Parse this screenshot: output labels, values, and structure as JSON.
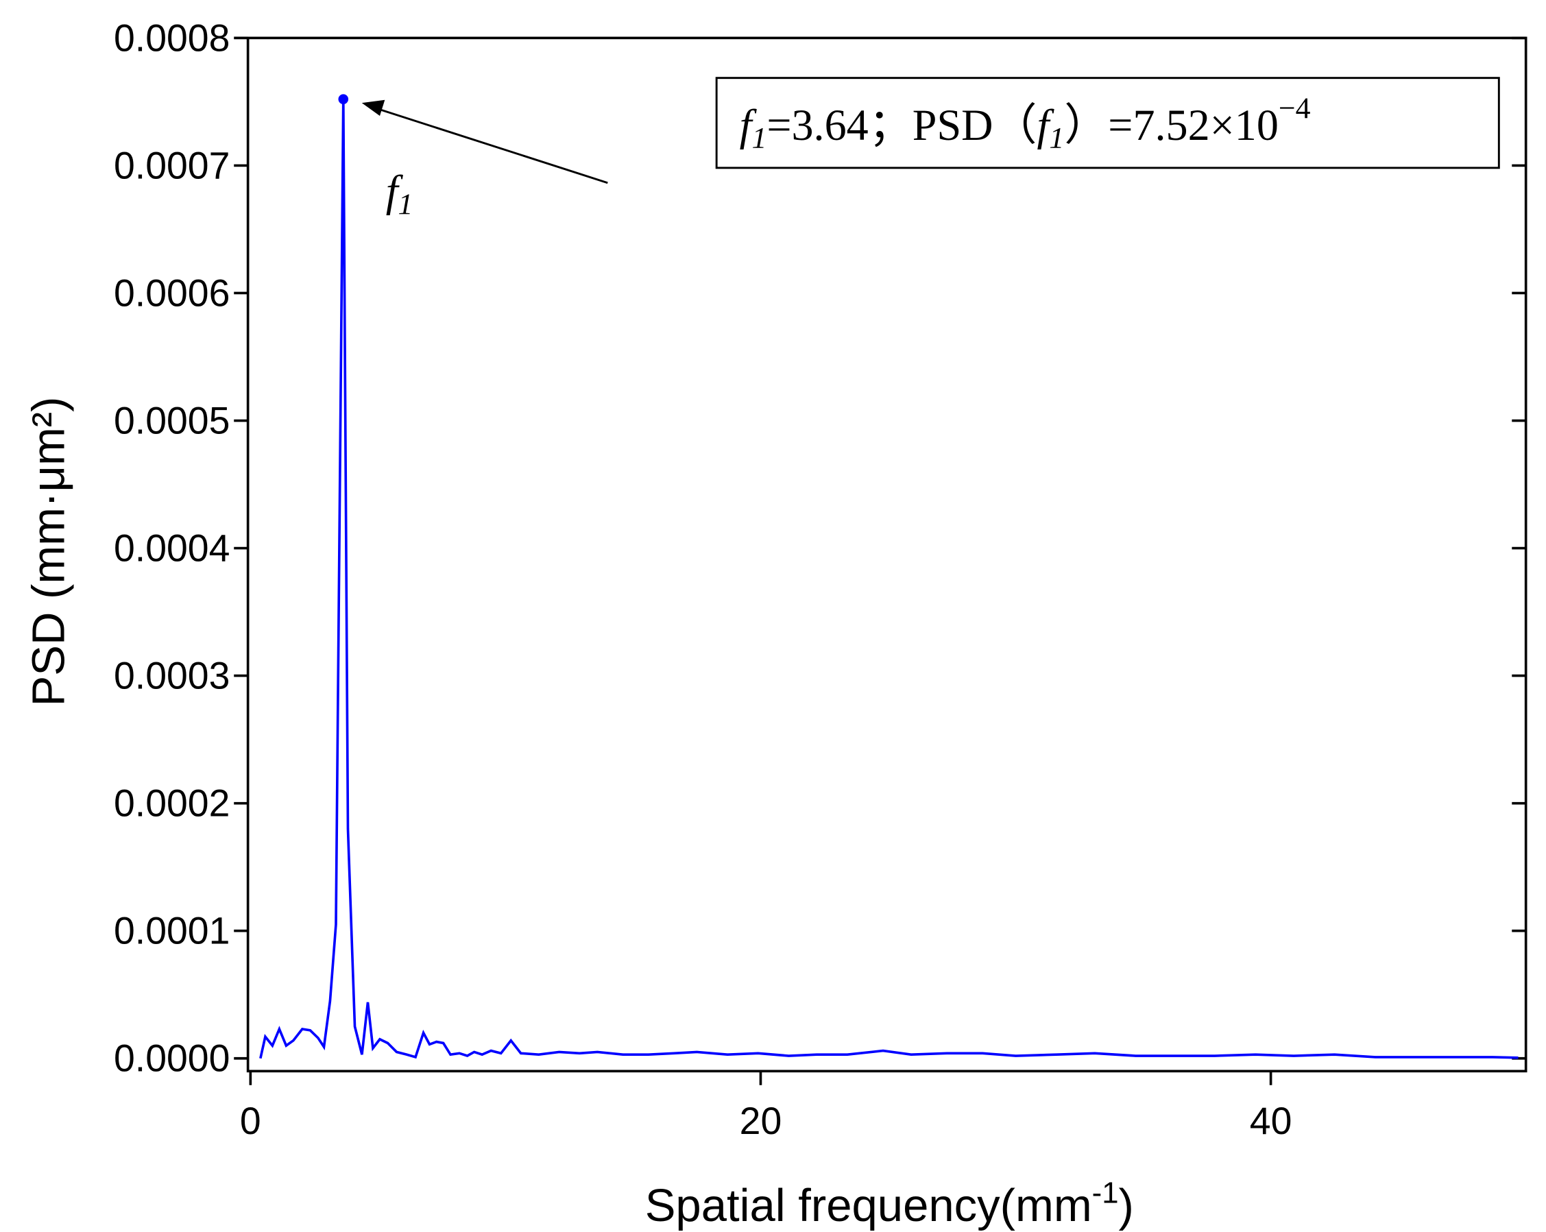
{
  "chart_data": {
    "type": "line",
    "x_label": [
      "Spatial frequency(mm",
      "-1",
      ")"
    ],
    "y_label": "PSD (mm·μm²)",
    "xlim": [
      -0.1,
      50.0
    ],
    "ylim": [
      -1e-05,
      0.0008
    ],
    "xticks": [
      0,
      20,
      40
    ],
    "yticks": [
      {
        "value": 0,
        "label": "0.0000"
      },
      0.0001,
      0.0002,
      0.0003,
      0.0004,
      0.0005,
      0.0006,
      0.0007,
      0.0008
    ],
    "series": [
      {
        "color": "#0000ff",
        "x": [
          0.39,
          0.58,
          0.86,
          1.13,
          1.4,
          1.68,
          2.03,
          2.34,
          2.65,
          2.88,
          3.12,
          3.35,
          3.64,
          3.82,
          4.09,
          4.37,
          4.6,
          4.8,
          5.07,
          5.38,
          5.73,
          6.12,
          6.47,
          6.78,
          7.02,
          7.29,
          7.56,
          7.84,
          8.19,
          8.5,
          8.77,
          9.08,
          9.43,
          9.82,
          10.21,
          10.6,
          11.3,
          12.1,
          12.9,
          13.6,
          14.6,
          15.6,
          16.6,
          17.5,
          18.7,
          19.9,
          21.1,
          22.2,
          23.4,
          24.8,
          25.9,
          27.3,
          28.7,
          30.0,
          31.6,
          33.1,
          34.7,
          36.3,
          37.8,
          39.4,
          40.9,
          42.5,
          44.1,
          45.6,
          47.2,
          48.7,
          49.7
        ],
        "values": [
          0,
          1.7e-05,
          1e-05,
          2.3e-05,
          1e-05,
          1.4e-05,
          2.3e-05,
          2.2e-05,
          1.6e-05,
          9e-06,
          4.5e-05,
          0.000105,
          0.000752,
          0.00018,
          2.5e-05,
          3e-06,
          4.4e-05,
          8e-06,
          1.5e-05,
          1.2e-05,
          5e-06,
          3e-06,
          1e-06,
          2e-05,
          1.1e-05,
          1.3e-05,
          1.2e-05,
          3e-06,
          4e-06,
          2e-06,
          5e-06,
          3e-06,
          6e-06,
          4e-06,
          1.4e-05,
          4e-06,
          3e-06,
          5e-06,
          4e-06,
          5e-06,
          3e-06,
          3e-06,
          4e-06,
          5e-06,
          3e-06,
          4e-06,
          2e-06,
          3e-06,
          3e-06,
          6e-06,
          3e-06,
          4e-06,
          4e-06,
          2e-06,
          3e-06,
          4e-06,
          2e-06,
          2e-06,
          2e-06,
          3e-06,
          2e-06,
          3e-06,
          1e-06,
          1e-06,
          1e-06,
          1e-06,
          5e-07
        ]
      }
    ],
    "peak_label": [
      "f",
      "1"
    ],
    "box_label": [
      "f",
      "1",
      "=3.64；PSD（",
      "f",
      "1",
      "）=7.52×10",
      "−4"
    ]
  }
}
